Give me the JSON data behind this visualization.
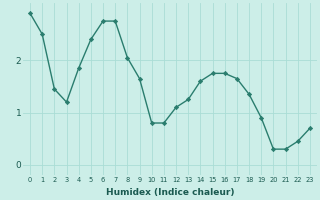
{
  "x": [
    0,
    1,
    2,
    3,
    4,
    5,
    6,
    7,
    8,
    9,
    10,
    11,
    12,
    13,
    14,
    15,
    16,
    17,
    18,
    19,
    20,
    21,
    22,
    23
  ],
  "y": [
    2.9,
    2.5,
    1.45,
    1.2,
    1.85,
    2.4,
    2.75,
    2.75,
    2.05,
    1.65,
    0.8,
    0.8,
    1.1,
    1.25,
    1.6,
    1.75,
    1.75,
    1.65,
    1.35,
    0.9,
    0.3,
    0.3,
    0.45,
    0.7
  ],
  "line_color": "#2a7d6e",
  "marker": "D",
  "marker_size": 2.2,
  "line_width": 1.0,
  "bg_color": "#cceee8",
  "grid_color": "#aaddd5",
  "xlabel": "Humidex (Indice chaleur)",
  "ylabel": "",
  "title": "",
  "yticks": [
    0,
    1,
    2
  ],
  "xtick_labels": [
    "0",
    "1",
    "2",
    "3",
    "4",
    "5",
    "6",
    "7",
    "8",
    "9",
    "10",
    "11",
    "12",
    "13",
    "14",
    "15",
    "16",
    "17",
    "18",
    "19",
    "20",
    "21",
    "22",
    "23"
  ],
  "ylim": [
    -0.2,
    3.1
  ],
  "xlim": [
    -0.6,
    23.6
  ]
}
